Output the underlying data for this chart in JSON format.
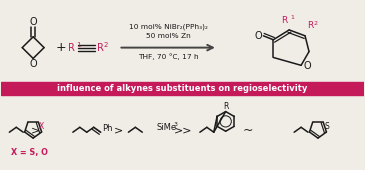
{
  "bg_color": "#f0ece6",
  "pink_color": "#c41a5a",
  "text_color": "#1a1a1a",
  "arrow_color": "#444444",
  "banner_bg": "#c41a5a",
  "banner_text": "influence of alkynes substituents on regioselectivity",
  "banner_text_color": "#ffffff",
  "reaction_line1": "10 mol% NiBr₂(PPh₃)₂",
  "reaction_line2": "50 mol% Zn",
  "reaction_line3": "THF, 70 °C, 17 h"
}
